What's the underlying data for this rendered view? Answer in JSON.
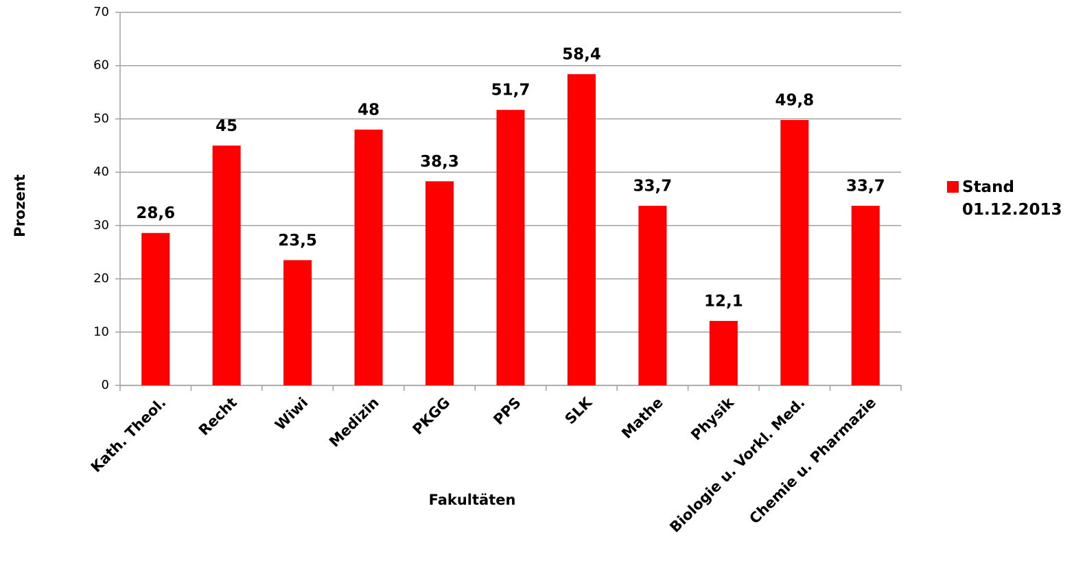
{
  "chart_data": {
    "type": "bar",
    "x_label": "Fakultäten",
    "y_label": "Prozent",
    "categories": [
      "Kath. Theol.",
      "Recht",
      "Wiwi",
      "Medizin",
      "PKGG",
      "PPS",
      "SLK",
      "Mathe",
      "Physik",
      "Biologie u. Vorkl. Med.",
      "Chemie u. Pharmazie"
    ],
    "series": [
      {
        "name": "Stand 01.12.2013",
        "color": "#ff0000",
        "values": [
          28.6,
          45,
          23.5,
          48,
          38.3,
          51.7,
          58.4,
          33.7,
          12.1,
          49.8,
          33.7
        ],
        "value_labels": [
          "28,6",
          "45",
          "23,5",
          "48",
          "38,3",
          "51,7",
          "58,4",
          "33,7",
          "12,1",
          "49,8",
          "33,7"
        ]
      }
    ],
    "ylim": [
      0,
      70
    ],
    "yticks": [
      0,
      10,
      20,
      30,
      40,
      50,
      60,
      70
    ],
    "grid": true,
    "legend": "right"
  }
}
